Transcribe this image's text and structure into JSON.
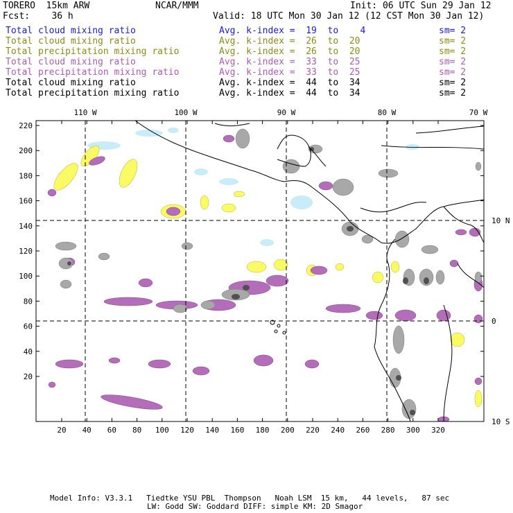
{
  "header": {
    "model": "TORERO  15km ARW",
    "center": "NCAR/MMM",
    "init": "Init: 06 UTC Sun 29 Jan 12",
    "fcst": "Fcst:    36 h",
    "valid": "Valid: 18 UTC Mon 30 Jan 12 (12 CST Mon 30 Jan 12)"
  },
  "legend": [
    {
      "field": "Total cloud mixing ratio",
      "kindex": "Avg. k-index =  19  to    4",
      "sm": "sm= 2",
      "color": "#1a1adc",
      "cls": "c-blue"
    },
    {
      "field": "Total cloud mixing ratio",
      "kindex": "Avg. k-index =  26  to  20",
      "sm": "sm= 2",
      "color": "#8c8c14",
      "cls": "c-olive"
    },
    {
      "field": "Total precipitation mixing ratio",
      "kindex": "Avg. k-index =  26  to  20",
      "sm": "sm= 2",
      "color": "#8c8c14",
      "cls": "c-olive"
    },
    {
      "field": "Total cloud mixing ratio",
      "kindex": "Avg. k-index =  33  to  25",
      "sm": "sm= 2",
      "color": "#b05ab4",
      "cls": "c-purple"
    },
    {
      "field": "Total precipitation mixing ratio",
      "kindex": "Avg. k-index =  33  to  25",
      "sm": "sm= 2",
      "color": "#b05ab4",
      "cls": "c-purple"
    },
    {
      "field": "Total cloud mixing ratio",
      "kindex": "Avg. k-index =  44  to  34",
      "sm": "sm= 2",
      "color": "#000000",
      "cls": "c-black"
    },
    {
      "field": "Total precipitation mixing ratio",
      "kindex": "Avg. k-index =  44  to  34",
      "sm": "sm= 2",
      "color": "#000000",
      "cls": "c-black"
    }
  ],
  "map": {
    "lon_labels": [
      "110 W",
      "100 W",
      "90 W",
      "80 W",
      "70 W"
    ],
    "lat_labels": [
      "10 N",
      "0",
      "10 S"
    ],
    "x_ticks": [
      "20",
      "40",
      "60",
      "80",
      "100",
      "120",
      "140",
      "160",
      "180",
      "200",
      "220",
      "240",
      "260",
      "280",
      "300",
      "320"
    ],
    "y_ticks": [
      "220",
      "200",
      "180",
      "160",
      "140",
      "120",
      "100",
      "80",
      "60",
      "40",
      "20"
    ],
    "colors": {
      "cyan": "#c8ecf8",
      "yellow": "#fafa64",
      "purple": "#b46eb9",
      "gray": "#a8a8a8",
      "dark": "#505050"
    }
  },
  "footer": {
    "line1": "Model Info: V3.3.1   Tiedtke YSU PBL  Thompson   Noah LSM  15 km,   44 levels,   87 sec",
    "line2": "LW: Godd SW: Goddard DIFF: simple KM: 2D Smagor"
  }
}
